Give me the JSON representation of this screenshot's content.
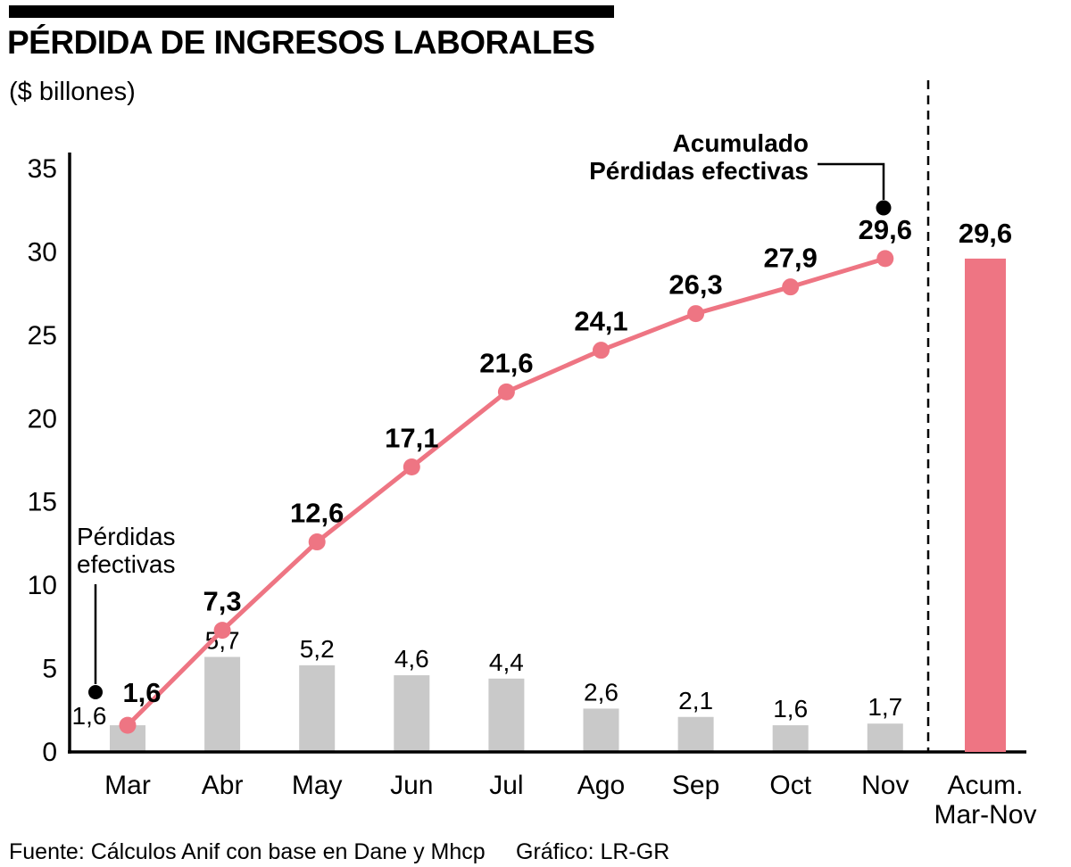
{
  "header": {
    "title": "PÉRDIDA DE INGRESOS LABORALES",
    "subtitle": "($ billones)"
  },
  "annotations": {
    "accumulated": {
      "line1": "Acumulado",
      "line2": "Pérdidas efectivas"
    },
    "effective": {
      "line1": "Pérdidas",
      "line2": "efectivas"
    }
  },
  "footer": {
    "source": "Fuente: Cálculos Anif con base en Dane y Mhcp",
    "credit": "Gráfico: LR-GR"
  },
  "colors": {
    "accent_pink": "#ee7583",
    "bar_gray": "#c9c9c9",
    "bar_label_gray": "#3d3d3d",
    "axis_black": "#000000"
  },
  "chart_data": {
    "type": "combo (cumulative line + monthly bars + total bar)",
    "title": "PÉRDIDA DE INGRESOS LABORALES",
    "subtitle": "($ billones)",
    "categories": [
      "Mar",
      "Abr",
      "May",
      "Jun",
      "Jul",
      "Ago",
      "Sep",
      "Oct",
      "Nov"
    ],
    "series": [
      {
        "name": "Acumulado Pérdidas efectivas",
        "type": "line",
        "values": [
          1.6,
          7.3,
          12.6,
          17.1,
          21.6,
          24.1,
          26.3,
          27.9,
          29.6
        ],
        "labels": [
          "1,6",
          "7,3",
          "12,6",
          "17,1",
          "21,6",
          "24,1",
          "26,3",
          "27,9",
          "29,6"
        ]
      },
      {
        "name": "Pérdidas efectivas",
        "type": "bar",
        "values": [
          1.6,
          5.7,
          5.2,
          4.6,
          4.4,
          2.6,
          2.1,
          1.6,
          1.7
        ],
        "labels": [
          "1,6",
          "5,7",
          "5,2",
          "4,6",
          "4,4",
          "2,6",
          "2,1",
          "1,6",
          "1,7"
        ]
      }
    ],
    "accumulated_bar": {
      "category_line1": "Acum.",
      "category_line2": "Mar-Nov",
      "value": 29.6,
      "label": "29,6"
    },
    "ylim": [
      0,
      35
    ],
    "yticks": [
      0,
      5,
      10,
      15,
      20,
      25,
      30,
      35
    ],
    "grid": false,
    "legend_position": "in-chart annotations"
  }
}
